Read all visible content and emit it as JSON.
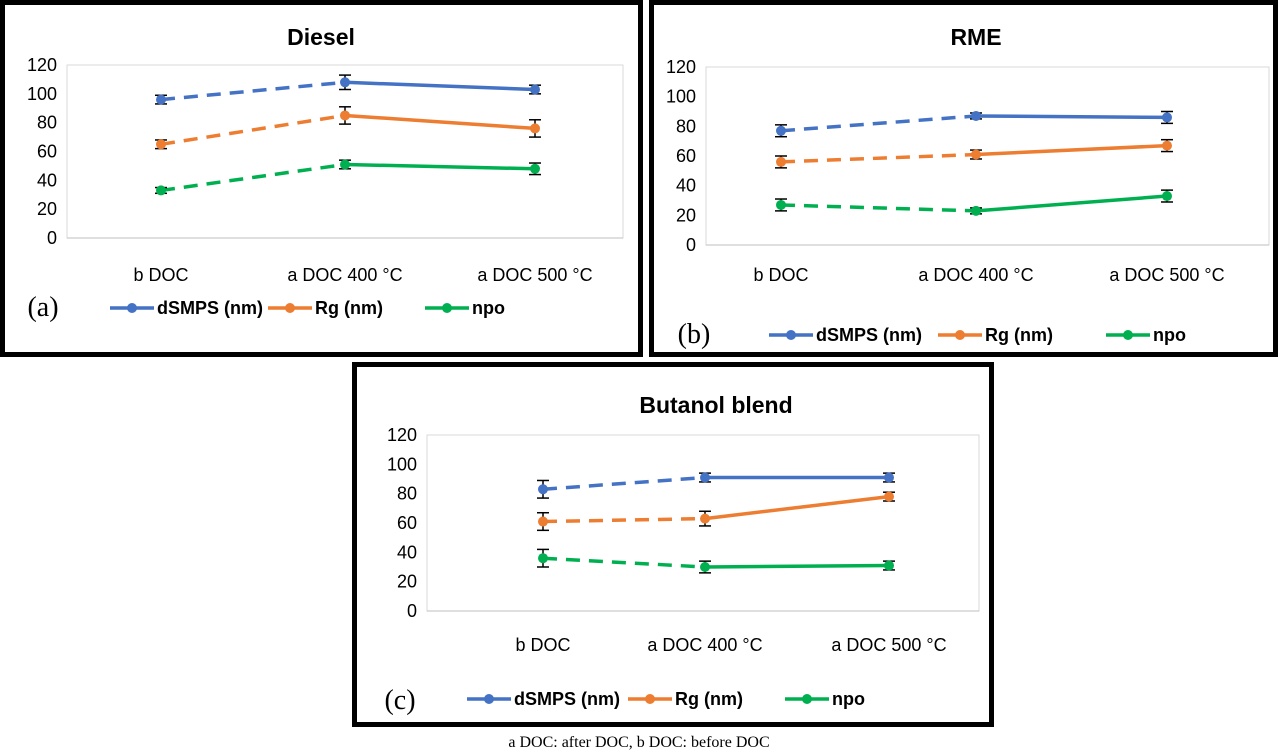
{
  "chart_data": [
    {
      "type": "line",
      "panel_label": "(a)",
      "title": "Diesel",
      "categories": [
        "b DOC",
        "a DOC 400 °C",
        "a DOC 500 °C"
      ],
      "ylim": [
        0,
        120
      ],
      "yticks": [
        0,
        20,
        40,
        60,
        80,
        100,
        120
      ],
      "grid": false,
      "legend": "bottom",
      "dashed_segment": "first",
      "series": [
        {
          "name": "dSMPS (nm)",
          "color": "#4472C4",
          "values": [
            96,
            108,
            103
          ],
          "errors": [
            3,
            5,
            3
          ]
        },
        {
          "name": "Rg (nm)",
          "color": "#ED7D31",
          "values": [
            65,
            85,
            76
          ],
          "errors": [
            3,
            6,
            6
          ]
        },
        {
          "name": "npo",
          "color": "#00B050",
          "values": [
            33,
            51,
            48
          ],
          "errors": [
            2,
            3,
            4
          ]
        }
      ]
    },
    {
      "type": "line",
      "panel_label": "(b)",
      "title": "RME",
      "categories": [
        "b DOC",
        "a DOC 400 °C",
        "a DOC 500 °C"
      ],
      "ylim": [
        0,
        120
      ],
      "yticks": [
        0,
        20,
        40,
        60,
        80,
        100,
        120
      ],
      "grid": false,
      "legend": "bottom",
      "dashed_segment": "first",
      "series": [
        {
          "name": "dSMPS (nm)",
          "color": "#4472C4",
          "values": [
            77,
            87,
            86
          ],
          "errors": [
            4,
            2,
            4
          ]
        },
        {
          "name": "Rg (nm)",
          "color": "#ED7D31",
          "values": [
            56,
            61,
            67
          ],
          "errors": [
            4,
            3,
            4
          ]
        },
        {
          "name": "npo",
          "color": "#00B050",
          "values": [
            27,
            23,
            33
          ],
          "errors": [
            4,
            2,
            4
          ]
        }
      ]
    },
    {
      "type": "line",
      "panel_label": "(c)",
      "title": "Butanol blend",
      "categories": [
        "b DOC",
        "a DOC 400 °C",
        "a DOC 500 °C"
      ],
      "ylim": [
        0,
        120
      ],
      "yticks": [
        0,
        20,
        40,
        60,
        80,
        100,
        120
      ],
      "grid": false,
      "legend": "bottom",
      "dashed_segment": "first",
      "series": [
        {
          "name": "dSMPS (nm)",
          "color": "#4472C4",
          "values": [
            83,
            91,
            91
          ],
          "errors": [
            6,
            3,
            3
          ]
        },
        {
          "name": "Rg (nm)",
          "color": "#ED7D31",
          "values": [
            61,
            63,
            78
          ],
          "errors": [
            6,
            5,
            3
          ]
        },
        {
          "name": "npo",
          "color": "#00B050",
          "values": [
            36,
            30,
            31
          ],
          "errors": [
            6,
            4,
            3
          ]
        }
      ]
    }
  ],
  "footnote": "a DOC: after DOC, b DOC: before DOC"
}
